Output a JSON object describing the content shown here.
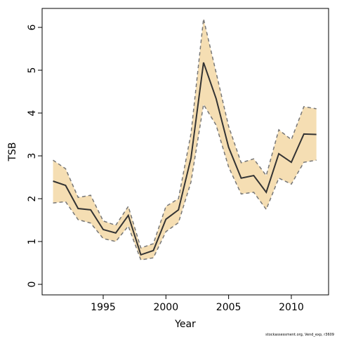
{
  "chart_data": {
    "type": "line",
    "x": [
      1991,
      1992,
      1993,
      1994,
      1995,
      1996,
      1997,
      1998,
      1999,
      2000,
      2001,
      2002,
      2003,
      2004,
      2005,
      2006,
      2007,
      2008,
      2009,
      2010,
      2011,
      2012
    ],
    "values": [
      2.41,
      2.31,
      1.77,
      1.74,
      1.28,
      1.2,
      1.61,
      0.69,
      0.79,
      1.52,
      1.74,
      2.95,
      5.18,
      4.34,
      3.2,
      2.48,
      2.54,
      2.15,
      3.05,
      2.85,
      3.51,
      3.5
    ],
    "lower": [
      1.9,
      1.93,
      1.51,
      1.43,
      1.07,
      1.0,
      1.36,
      0.57,
      0.62,
      1.23,
      1.44,
      2.39,
      4.2,
      3.72,
      2.74,
      2.11,
      2.15,
      1.75,
      2.48,
      2.34,
      2.85,
      2.9
    ],
    "upper": [
      2.9,
      2.7,
      2.03,
      2.08,
      1.48,
      1.38,
      1.82,
      0.85,
      0.95,
      1.82,
      2.0,
      3.52,
      6.2,
      4.95,
      3.69,
      2.84,
      2.93,
      2.54,
      3.61,
      3.38,
      4.15,
      4.1
    ],
    "color": "#333333",
    "band_color": "#f5deb3",
    "bound_color": "#777777",
    "xlabel": "Year",
    "ylabel": "TSB",
    "xlim": [
      1990.13,
      2012.97
    ],
    "ylim": [
      -0.246,
      6.443
    ],
    "xticks": [
      1995,
      2000,
      2005,
      2010
    ],
    "yticks": [
      0,
      1,
      2,
      3,
      4,
      5,
      6
    ],
    "footnote": "stockassessment.org, Vend_exp, r3609"
  }
}
